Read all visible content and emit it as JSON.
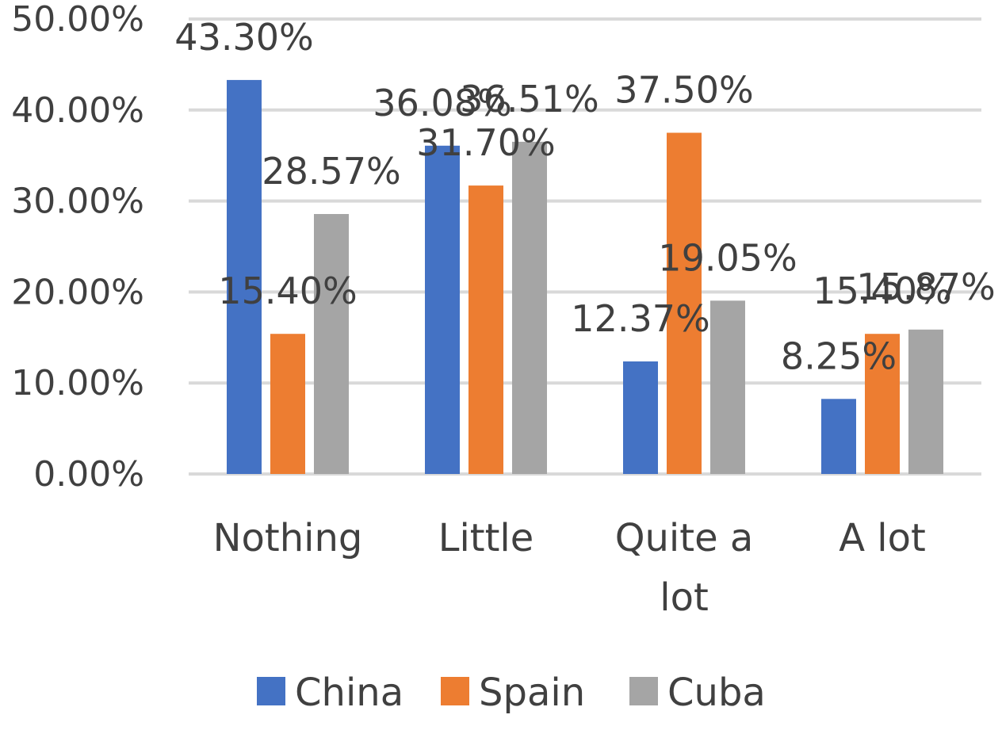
{
  "chart_data": {
    "type": "bar",
    "categories": [
      [
        "Nothing"
      ],
      [
        "Little"
      ],
      [
        "Quite a",
        "lot"
      ],
      [
        "A lot"
      ]
    ],
    "series": [
      {
        "name": "China",
        "color": "#4472C4",
        "values": [
          43.3,
          36.08,
          12.37,
          8.25
        ],
        "labels": [
          "43.30%",
          "36.08%",
          "12.37%",
          "8.25%"
        ]
      },
      {
        "name": "Spain",
        "color": "#ED7D31",
        "values": [
          15.4,
          31.7,
          37.5,
          15.4
        ],
        "labels": [
          "15.40%",
          "31.70%",
          "37.50%",
          "15.40%"
        ]
      },
      {
        "name": "Cuba",
        "color": "#A5A5A5",
        "values": [
          28.57,
          36.51,
          19.05,
          15.87
        ],
        "labels": [
          "28.57%",
          "36.51%",
          "19.05%",
          "15.87%"
        ]
      }
    ],
    "y_ticks": [
      "0.00%",
      "10.00%",
      "20.00%",
      "30.00%",
      "40.00%",
      "50.00%"
    ],
    "ylim": [
      0,
      50
    ],
    "grid": true,
    "legend_position": "bottom",
    "title": "",
    "xlabel": "",
    "ylabel": ""
  }
}
